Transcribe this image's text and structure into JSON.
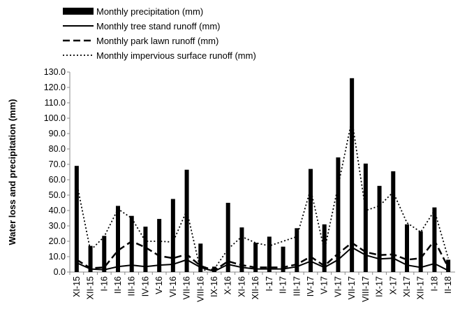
{
  "chart_data": {
    "type": "bar_line",
    "ylabel": "Water loss and precipitation (mm)",
    "categories": [
      "XI-15",
      "XII-15",
      "I-16",
      "II-16",
      "III-16",
      "IV-16",
      "V-16",
      "VI-16",
      "VII-16",
      "VIII-16",
      "IX-16",
      "X-16",
      "XI-16",
      "XII-16",
      "I-17",
      "II-17",
      "III-17",
      "IV-17",
      "V-17",
      "VI-17",
      "VII-17",
      "VIII-17",
      "IX-17",
      "X-17",
      "XI-17",
      "XII-17",
      "I-18",
      "II-18"
    ],
    "series": [
      {
        "name": "Monthly precipitation (mm)",
        "kind": "bar",
        "color": "#000000",
        "values": [
          69,
          17,
          23.5,
          43,
          36.5,
          29.5,
          34.5,
          47.5,
          66.5,
          18.5,
          3.5,
          45,
          29,
          19,
          23,
          16.5,
          28.5,
          67,
          31,
          74.5,
          126,
          70.5,
          56,
          65.5,
          31,
          26.5,
          42,
          8
        ]
      },
      {
        "name": "Monthly tree stand runoff (mm)",
        "kind": "line",
        "dash": "solid",
        "color": "#000000",
        "values": [
          6,
          2,
          1.5,
          3.5,
          4.5,
          3.5,
          4.5,
          5,
          8,
          3,
          0.5,
          5,
          3,
          2,
          2,
          2,
          3.5,
          7,
          3,
          8,
          16,
          11,
          8.5,
          9,
          4.5,
          3,
          5.5,
          1
        ]
      },
      {
        "name": "Monthly park lawn runoff (mm)",
        "kind": "line",
        "dash": "dashed",
        "color": "#000000",
        "values": [
          8,
          2.5,
          3,
          14,
          20,
          16,
          10.5,
          9,
          11.5,
          4,
          1,
          7,
          4.5,
          3,
          3,
          3,
          5,
          10,
          4,
          12,
          19,
          13,
          11,
          11.5,
          8,
          9,
          20.5,
          3
        ]
      },
      {
        "name": "Monthly impervious surface runoff (mm)",
        "kind": "line",
        "dash": "dotted",
        "color": "#000000",
        "values": [
          58,
          14,
          23,
          41,
          35,
          20,
          20,
          19.5,
          40,
          1,
          2,
          15,
          23,
          19,
          17,
          20,
          23,
          54,
          14,
          56,
          99,
          40,
          43,
          52,
          32,
          26,
          40,
          9
        ]
      }
    ],
    "ylim": [
      0,
      130
    ],
    "yticks": [
      {
        "value": 0,
        "label": "0.0"
      },
      {
        "value": 10,
        "label": "10.0"
      },
      {
        "value": 20,
        "label": "20.0"
      },
      {
        "value": 30,
        "label": "30.0"
      },
      {
        "value": 40,
        "label": "40.0"
      },
      {
        "value": 50,
        "label": "50.0"
      },
      {
        "value": 60,
        "label": "60.0"
      },
      {
        "value": 70,
        "label": "70.0"
      },
      {
        "value": 80,
        "label": "80.0"
      },
      {
        "value": 90,
        "label": "90.0"
      },
      {
        "value": 100,
        "label": "100.0"
      },
      {
        "value": 110,
        "label": "110.0"
      },
      {
        "value": 120,
        "label": "120.0"
      },
      {
        "value": 130,
        "label": "130.0"
      }
    ]
  }
}
